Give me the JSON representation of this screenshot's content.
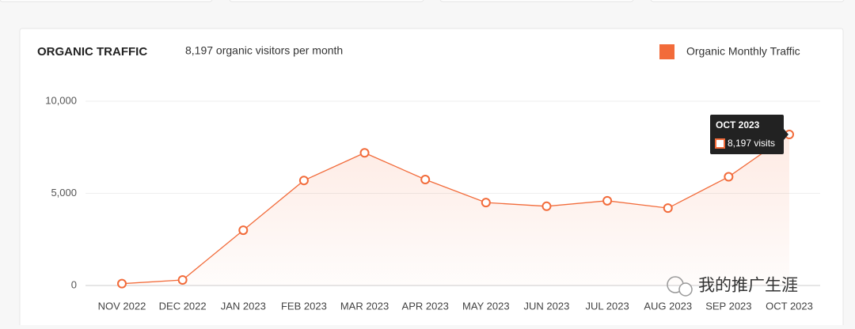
{
  "chart_data": {
    "type": "area",
    "title": "ORGANIC TRAFFIC",
    "subtitle": "8,197 organic visitors per month",
    "categories": [
      "NOV 2022",
      "DEC 2022",
      "JAN 2023",
      "FEB 2023",
      "MAR 2023",
      "APR 2023",
      "MAY 2023",
      "JUN 2023",
      "JUL 2023",
      "AUG 2023",
      "SEP 2023",
      "OCT 2023"
    ],
    "series": [
      {
        "name": "Organic Monthly Traffic",
        "color": "#f26b3a",
        "values": [
          100,
          300,
          3000,
          5700,
          7200,
          5750,
          4500,
          4300,
          4600,
          4200,
          5900,
          8197
        ]
      }
    ],
    "ylim": [
      0,
      10000
    ],
    "yticks": [
      0,
      {
        "value": 5000,
        "label": "5,000"
      },
      {
        "value": 10000,
        "label": "10,000"
      }
    ],
    "grid": true,
    "legend": "top-right",
    "tooltip": {
      "title": "OCT 2023",
      "label": "8,197 visits"
    },
    "watermark": "我的推广生涯"
  }
}
